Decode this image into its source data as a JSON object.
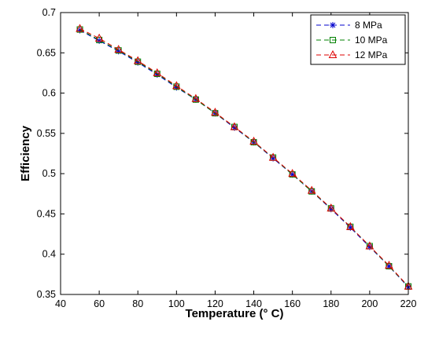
{
  "chart_data": {
    "type": "line",
    "title": "",
    "xlabel": "Temperature (° C)",
    "ylabel": "Efficiency",
    "xlim": [
      40,
      220
    ],
    "ylim": [
      0.35,
      0.7
    ],
    "xticks": [
      40,
      60,
      80,
      100,
      120,
      140,
      160,
      180,
      200,
      220
    ],
    "yticks": [
      0.35,
      0.4,
      0.45,
      0.5,
      0.55,
      0.6,
      0.65,
      0.7
    ],
    "grid": false,
    "legend_position": "top-right",
    "x": [
      50,
      60,
      70,
      80,
      90,
      100,
      110,
      120,
      130,
      140,
      150,
      160,
      170,
      180,
      190,
      200,
      210,
      220
    ],
    "series": [
      {
        "name": "8 MPa",
        "color": "#0000cc",
        "marker": "star",
        "line_style": "dashed",
        "values": [
          0.678,
          0.665,
          0.652,
          0.638,
          0.623,
          0.607,
          0.592,
          0.575,
          0.557,
          0.539,
          0.519,
          0.499,
          0.478,
          0.456,
          0.433,
          0.409,
          0.385,
          0.359
        ]
      },
      {
        "name": "10 MPa",
        "color": "#008000",
        "marker": "square",
        "line_style": "dashed",
        "values": [
          0.679,
          0.666,
          0.653,
          0.639,
          0.624,
          0.608,
          0.592,
          0.575,
          0.558,
          0.539,
          0.52,
          0.499,
          0.478,
          0.457,
          0.434,
          0.41,
          0.385,
          0.36
        ]
      },
      {
        "name": "12 MPa",
        "color": "#dd0000",
        "marker": "triangle",
        "line_style": "dashed",
        "values": [
          0.68,
          0.668,
          0.654,
          0.64,
          0.625,
          0.609,
          0.593,
          0.576,
          0.558,
          0.54,
          0.52,
          0.5,
          0.479,
          0.457,
          0.434,
          0.41,
          0.386,
          0.36
        ]
      }
    ]
  }
}
